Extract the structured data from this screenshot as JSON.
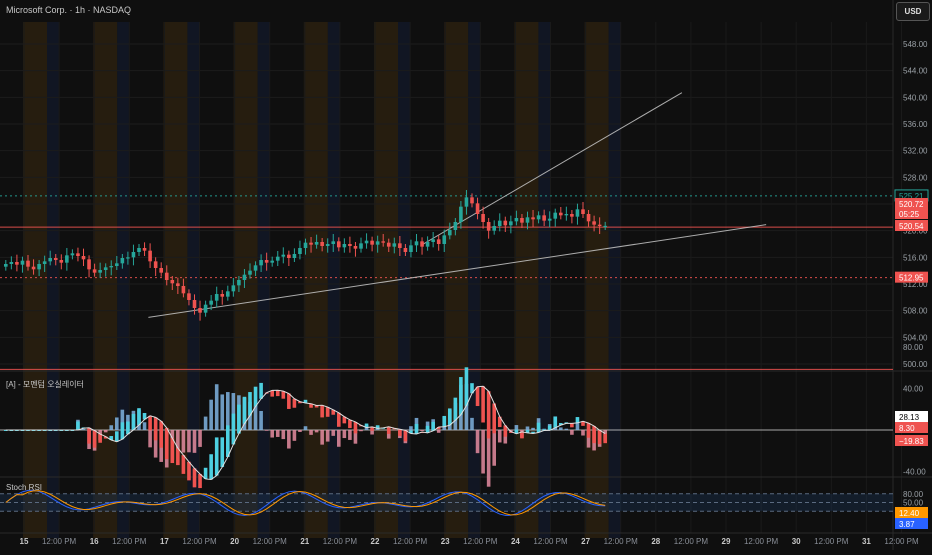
{
  "header": {
    "title": "Microsoft Corp. · 1h · NASDAQ",
    "currency_button": "USD"
  },
  "colors": {
    "background": "#0f0f0f",
    "bull": "#26a69a",
    "bear": "#ef5350",
    "session_orange": "#3a2a10",
    "session_blue": "#121a2c",
    "resistance_green": "#26a69a",
    "level_red": "#ef5350",
    "trendline": "#c8c8c8",
    "stoch_k": "#2962ff",
    "stoch_d": "#ff9800"
  },
  "chart_data": [
    {
      "type": "candlestick",
      "name": "main-price-pane",
      "ylim": [
        496,
        550
      ],
      "y_ticks": [
        500,
        504,
        508,
        512,
        516,
        520,
        524,
        528,
        532,
        536,
        540,
        544,
        548
      ],
      "x_ticks": [
        "15",
        "12:00 PM",
        "16",
        "12:00 PM",
        "17",
        "12:00 PM",
        "20",
        "12:00 PM",
        "21",
        "12:00 PM",
        "22",
        "12:00 PM",
        "23",
        "12:00 PM",
        "24",
        "12:00 PM",
        "27",
        "12:00 PM",
        "28",
        "12:00 PM",
        "29",
        "12:00 PM",
        "30",
        "12:00 PM",
        "31",
        "12:00 PM"
      ],
      "price_labels": [
        {
          "value": "525.21",
          "role": "resistance",
          "color": "#26a69a"
        },
        {
          "value": "520.72",
          "role": "last-price",
          "color": "#ef5350"
        },
        {
          "value": "05:25",
          "role": "countdown",
          "color": "#ef5350"
        },
        {
          "value": "520.54",
          "role": "level",
          "color": "#ef5350"
        },
        {
          "value": "512.95",
          "role": "support",
          "color": "#ef5350"
        }
      ],
      "horizontal_levels": [
        {
          "price": 525.21,
          "style": "dotted",
          "color": "#26a69a"
        },
        {
          "price": 520.54,
          "style": "solid",
          "color": "#ef5350"
        },
        {
          "price": 512.95,
          "style": "dotted",
          "color": "#ef5350"
        },
        {
          "price": 499.2,
          "style": "solid",
          "color": "#ef5350"
        }
      ],
      "trendlines": [
        {
          "from": [
            16.9,
            507.0
          ],
          "to": [
            25.7,
            520.9
          ]
        },
        {
          "from": [
            20.8,
            517.9
          ],
          "to": [
            24.5,
            540.7
          ]
        }
      ],
      "closes": [
        515.0,
        515.3,
        514.9,
        515.5,
        514.6,
        514.2,
        515.0,
        515.4,
        515.9,
        515.6,
        515.2,
        516.3,
        516.6,
        516.2,
        515.7,
        514.2,
        513.7,
        514.1,
        514.5,
        514.7,
        515.1,
        515.9,
        516.0,
        516.8,
        517.4,
        517.0,
        515.4,
        514.4,
        513.7,
        512.6,
        512.1,
        511.7,
        510.6,
        509.6,
        508.4,
        507.7,
        508.9,
        509.5,
        510.5,
        510.1,
        510.9,
        511.8,
        512.6,
        513.4,
        514.0,
        514.8,
        515.6,
        515.2,
        515.5,
        516.1,
        516.4,
        515.9,
        516.5,
        517.4,
        518.2,
        517.9,
        518.3,
        517.7,
        518.0,
        518.4,
        517.5,
        518.0,
        517.7,
        517.3,
        518.1,
        518.5,
        517.9,
        518.4,
        518.2,
        517.6,
        518.1,
        517.4,
        516.8,
        517.8,
        518.4,
        517.6,
        518.3,
        518.7,
        518.0,
        519.3,
        520.1,
        521.3,
        523.6,
        525.0,
        524.1,
        522.5,
        521.3,
        520.0,
        520.7,
        521.5,
        520.8,
        521.4,
        521.9,
        521.2,
        522.0,
        521.7,
        522.3,
        521.5,
        521.8,
        522.7,
        522.3,
        522.5,
        522.1,
        523.2,
        522.5,
        521.4,
        520.9,
        520.7,
        520.72
      ]
    },
    {
      "type": "histogram-line",
      "name": "macd-pane",
      "title": "[A] - 모멘텀 오실레이터",
      "y_ticks": [
        80.0,
        40.0,
        -40.0
      ],
      "value_labels": [
        {
          "value": "28.13",
          "role": "signal",
          "color": "#ffffff"
        },
        {
          "value": "8.30",
          "role": "macd",
          "color": "#ef5350"
        },
        {
          "value": "−19.83",
          "role": "histogram",
          "color": "#ef5350"
        }
      ]
    },
    {
      "type": "line",
      "name": "stoch-rsi-pane",
      "title": "Stoch RSI",
      "y_ticks": [
        80.0,
        50.0,
        20.0
      ],
      "value_labels": [
        {
          "value": "12.40",
          "role": "d",
          "color": "#ff9800"
        },
        {
          "value": "3.87",
          "role": "k",
          "color": "#2962ff"
        }
      ]
    }
  ]
}
